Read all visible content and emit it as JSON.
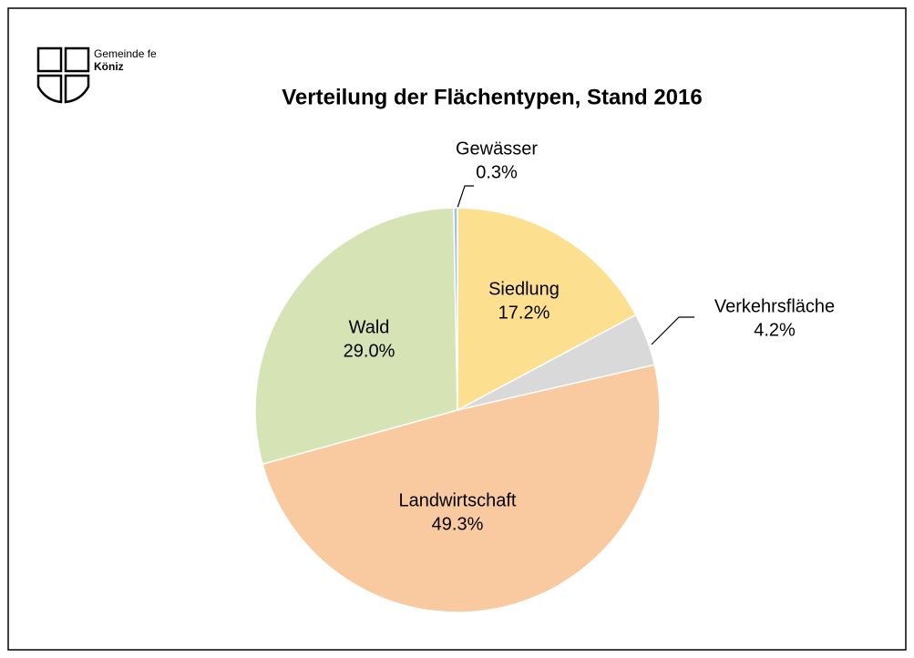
{
  "logo": {
    "line1": "Gemeinde fe",
    "line2": "Köniz"
  },
  "chart_data": {
    "type": "pie",
    "title": "Verteilung der Flächentypen, Stand 2016",
    "categories": [
      "Siedlung",
      "Verkehrsfläche",
      "Landwirtschaft",
      "Wald",
      "Gewässer"
    ],
    "values": [
      17.2,
      4.2,
      49.3,
      29.0,
      0.3
    ],
    "value_labels": [
      "17.2%",
      "4.2%",
      "49.3%",
      "29.0%",
      "0.3%"
    ],
    "colors": [
      "#fde08f",
      "#d9d9d9",
      "#f9c9a0",
      "#d5e3b5",
      "#9dc3e6"
    ]
  }
}
